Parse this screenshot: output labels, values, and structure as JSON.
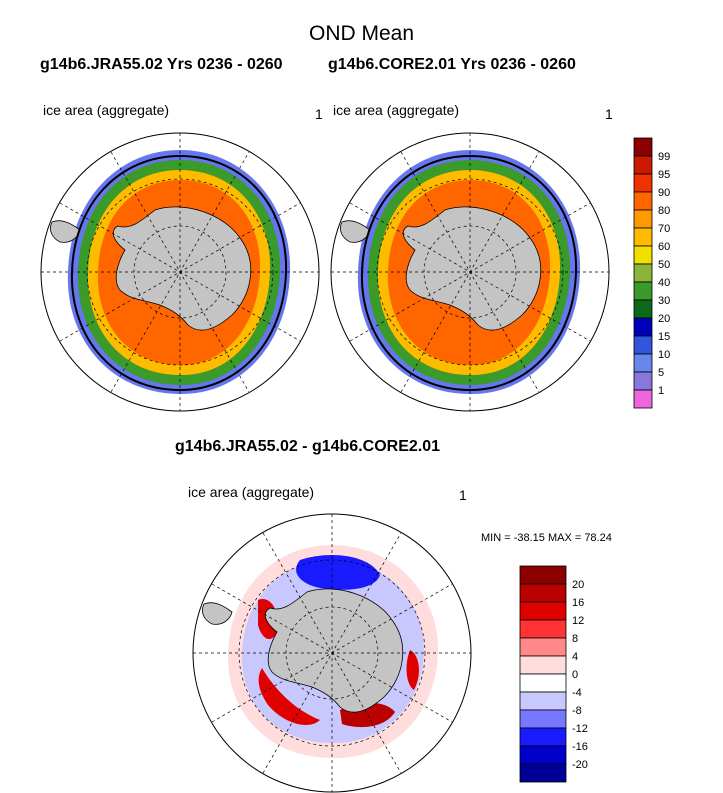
{
  "title": "OND Mean",
  "panels": [
    {
      "subtitle": "g14b6.JRA55.02  Yrs 0236 - 0260",
      "left_label": "ice area  (aggregate)",
      "right_label": "1"
    },
    {
      "subtitle": "g14b6.CORE2.01  Yrs 0236 - 0260",
      "left_label": "ice area  (aggregate)",
      "right_label": "1"
    },
    {
      "subtitle": "g14b6.JRA55.02 - g14b6.CORE2.01",
      "left_label": "ice area  (aggregate)",
      "right_label": "1"
    }
  ],
  "diff_stats": "MIN = -38.15 MAX =  78.24",
  "colorbars": {
    "concentration": {
      "labels": [
        "99",
        "95",
        "90",
        "80",
        "70",
        "60",
        "50",
        "40",
        "30",
        "20",
        "15",
        "10",
        "5",
        "1"
      ],
      "colors": [
        "#8c0000",
        "#cc1a00",
        "#ee3300",
        "#ff6600",
        "#ff9900",
        "#ffbb00",
        "#f0e000",
        "#8ab43a",
        "#3a9a2a",
        "#0a6a1a",
        "#0000bb",
        "#3355dd",
        "#6688ee",
        "#8877dd",
        "#ee66dd"
      ]
    },
    "difference": {
      "labels": [
        "20",
        "16",
        "12",
        "8",
        "4",
        "0",
        "-4",
        "-8",
        "-12",
        "-16",
        "-20"
      ],
      "colors": [
        "#8c0000",
        "#bb0000",
        "#e00000",
        "#ff3333",
        "#ff8888",
        "#ffdddd",
        "#ffffff",
        "#c8c8ff",
        "#7777ff",
        "#1a1aff",
        "#0000cc",
        "#000099"
      ]
    }
  },
  "map_colors": {
    "land": "#c4c4c4",
    "ocean": "#ffffff"
  }
}
